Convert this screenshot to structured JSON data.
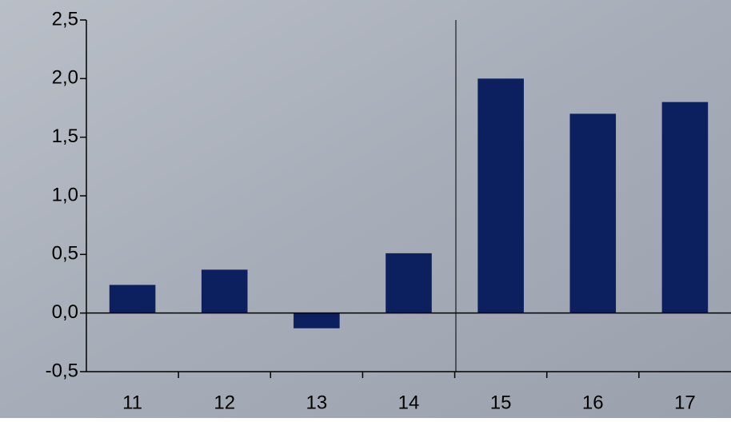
{
  "chart_data": {
    "type": "bar",
    "categories": [
      "11",
      "12",
      "13",
      "14",
      "15",
      "16",
      "17"
    ],
    "values": [
      0.24,
      0.37,
      -0.13,
      0.51,
      2.0,
      1.7,
      1.8
    ],
    "color": "#0c1f5e",
    "ylim": [
      -0.5,
      2.5
    ],
    "yticks": [
      {
        "value": -0.5,
        "label": "-0,5"
      },
      {
        "value": 0,
        "label": "0,0"
      },
      {
        "value": 0.5,
        "label": "0,5"
      },
      {
        "value": 1,
        "label": "1,0"
      },
      {
        "value": 1.5,
        "label": "1,5"
      },
      {
        "value": 2,
        "label": "2,0"
      },
      {
        "value": 2.5,
        "label": "2,5"
      }
    ],
    "grid": false
  }
}
